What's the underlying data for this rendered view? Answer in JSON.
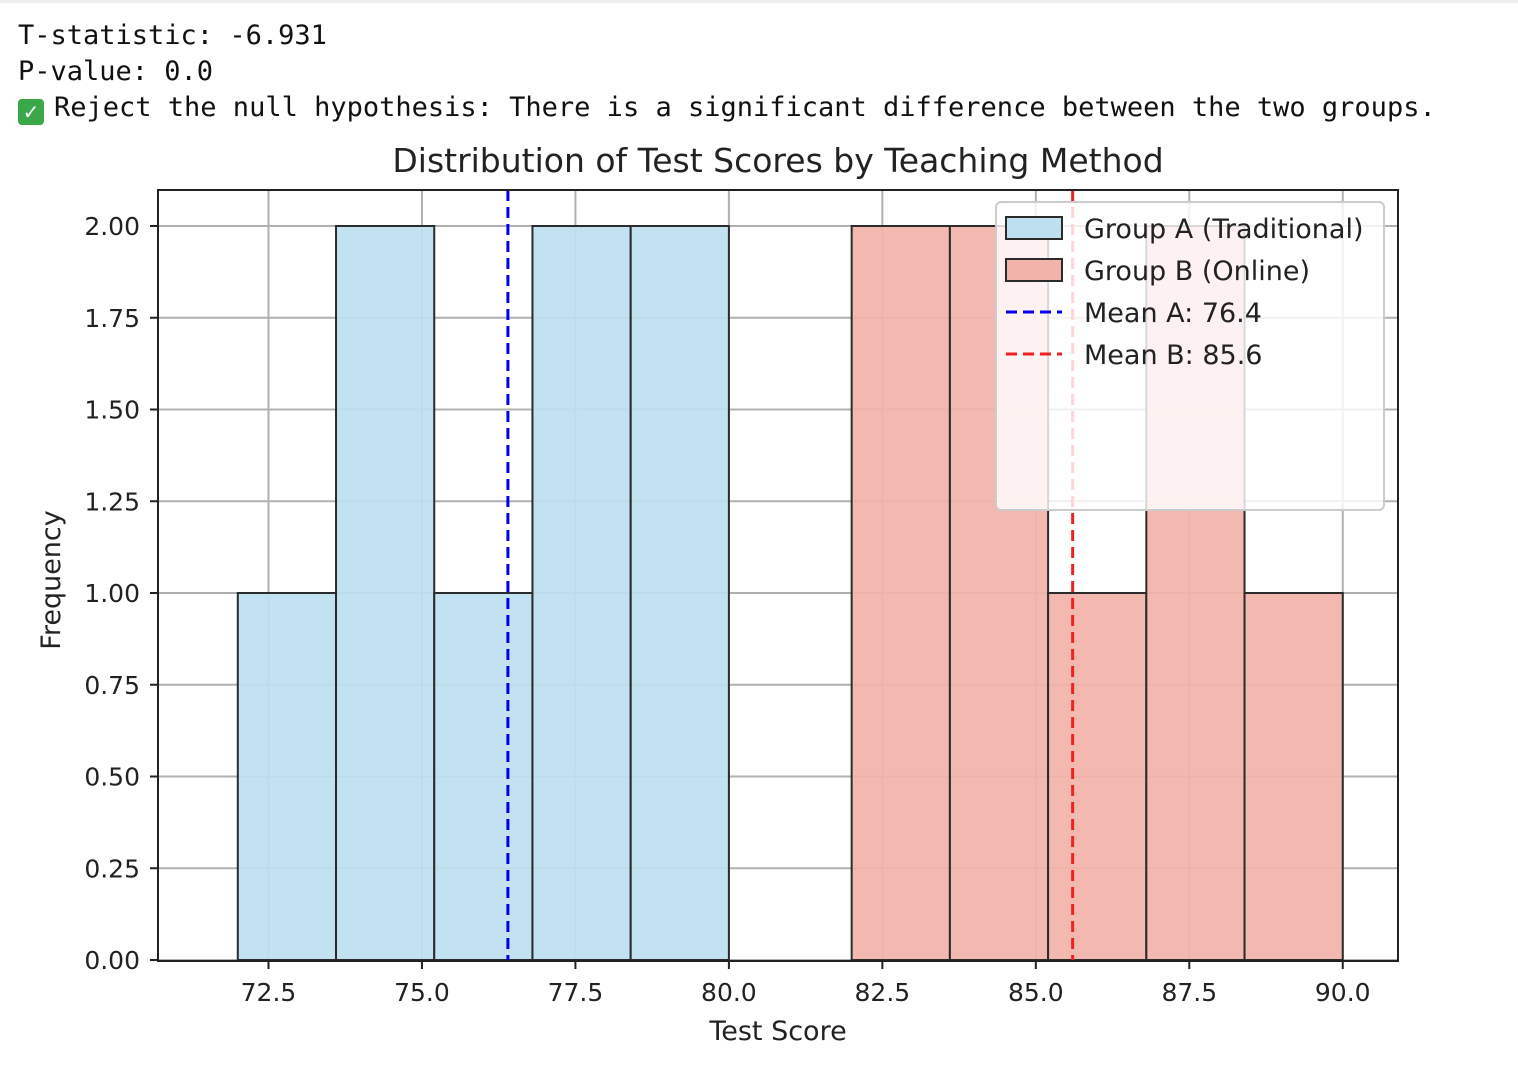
{
  "output": {
    "t_line": "T-statistic: -6.931",
    "p_line": "P-value: 0.0",
    "result_icon": "check-mark-emoji",
    "result_line": "Reject the null hypothesis: There is a significant difference between the two groups."
  },
  "chart_data": {
    "type": "bar",
    "title": "Distribution of Test Scores by Teaching Method",
    "xlabel": "Test Score",
    "ylabel": "Frequency",
    "xlim": [
      70.7,
      90.9
    ],
    "ylim": [
      0,
      2.1
    ],
    "xticks": [
      "72.5",
      "75.0",
      "77.5",
      "80.0",
      "82.5",
      "85.0",
      "87.5",
      "90.0"
    ],
    "yticks": [
      "0.00",
      "0.25",
      "0.50",
      "0.75",
      "1.00",
      "1.25",
      "1.50",
      "1.75",
      "2.00"
    ],
    "grid": true,
    "legend_position": "top-right",
    "series": [
      {
        "name": "Group A (Traditional)",
        "color": "#bedff0",
        "edge_color": "#2b2b2b",
        "bins": [
          [
            72.0,
            73.6,
            1
          ],
          [
            73.6,
            75.2,
            2
          ],
          [
            75.2,
            76.8,
            1
          ],
          [
            76.8,
            78.4,
            2
          ],
          [
            78.4,
            80.0,
            2
          ]
        ]
      },
      {
        "name": "Group B (Online)",
        "color": "#f2b3aa",
        "edge_color": "#2b2b2b",
        "bins": [
          [
            82.0,
            83.6,
            2
          ],
          [
            83.6,
            85.2,
            2
          ],
          [
            85.2,
            86.8,
            1
          ],
          [
            86.8,
            88.4,
            2
          ],
          [
            88.4,
            90.0,
            1
          ]
        ]
      }
    ],
    "mean_lines": [
      {
        "name": "Mean A: 76.4",
        "value": 76.4,
        "color": "#0000ee"
      },
      {
        "name": "Mean B: 85.6",
        "value": 85.6,
        "color": "#ee2222"
      }
    ]
  }
}
